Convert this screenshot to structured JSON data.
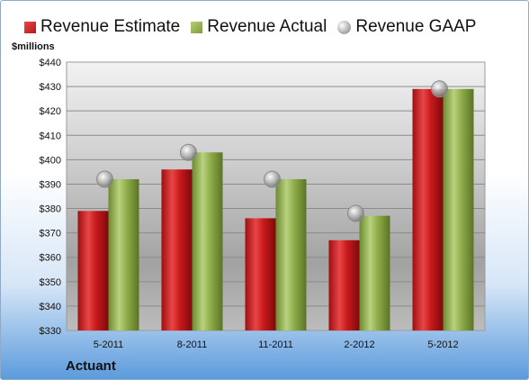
{
  "chart_data": {
    "type": "bar",
    "ylabel": "$millions",
    "company": "Actuant",
    "categories": [
      "5-2011",
      "8-2011",
      "11-2011",
      "2-2012",
      "5-2012"
    ],
    "series": [
      {
        "name": "Revenue Estimate",
        "values": [
          379,
          396,
          376,
          367,
          429
        ],
        "color": "#c8191c"
      },
      {
        "name": "Revenue Actual",
        "values": [
          392,
          403,
          392,
          377,
          429
        ],
        "color": "#8fad4a"
      },
      {
        "name": "Revenue GAAP",
        "values": [
          392,
          403,
          392,
          378,
          429
        ],
        "color": "#a8a8a8",
        "style": "markers"
      }
    ],
    "ylim": [
      330,
      440
    ],
    "yticks": [
      330,
      340,
      350,
      360,
      370,
      380,
      390,
      400,
      410,
      420,
      430,
      440
    ],
    "ytick_labels": [
      "$330",
      "$340",
      "$350",
      "$360",
      "$370",
      "$380",
      "$390",
      "$400",
      "$410",
      "$420",
      "$430",
      "$440"
    ],
    "grid": true,
    "legend_position": "top"
  }
}
